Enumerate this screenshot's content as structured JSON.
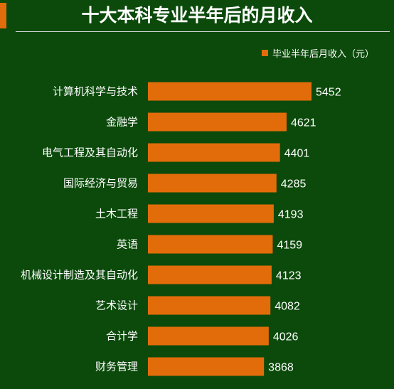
{
  "chart_data": {
    "type": "bar",
    "orientation": "horizontal",
    "title": "十大本科专业半年后的月收入",
    "legend": {
      "label": "毕业半年后月收入（元）",
      "position": "top-right"
    },
    "categories": [
      "计算机科学与技术",
      "金融学",
      "电气工程及其自动化",
      "国际经济与贸易",
      "土木工程",
      "英语",
      "机械设计制造及其自动化",
      "艺术设计",
      "合计学",
      "财务管理"
    ],
    "values": [
      5452,
      4621,
      4401,
      4285,
      4193,
      4159,
      4123,
      4082,
      4026,
      3868
    ],
    "value_labels": [
      "5452",
      "4621",
      "4401",
      "4285",
      "4193",
      "4159",
      "4123",
      "4082",
      "4026",
      "3868"
    ],
    "xlim": [
      0,
      5452
    ],
    "grid": false,
    "colors": {
      "bar": "#e36c0a",
      "background": "#0b4a0b",
      "text": "#ffffff",
      "rule": "#d9d9d9"
    }
  }
}
